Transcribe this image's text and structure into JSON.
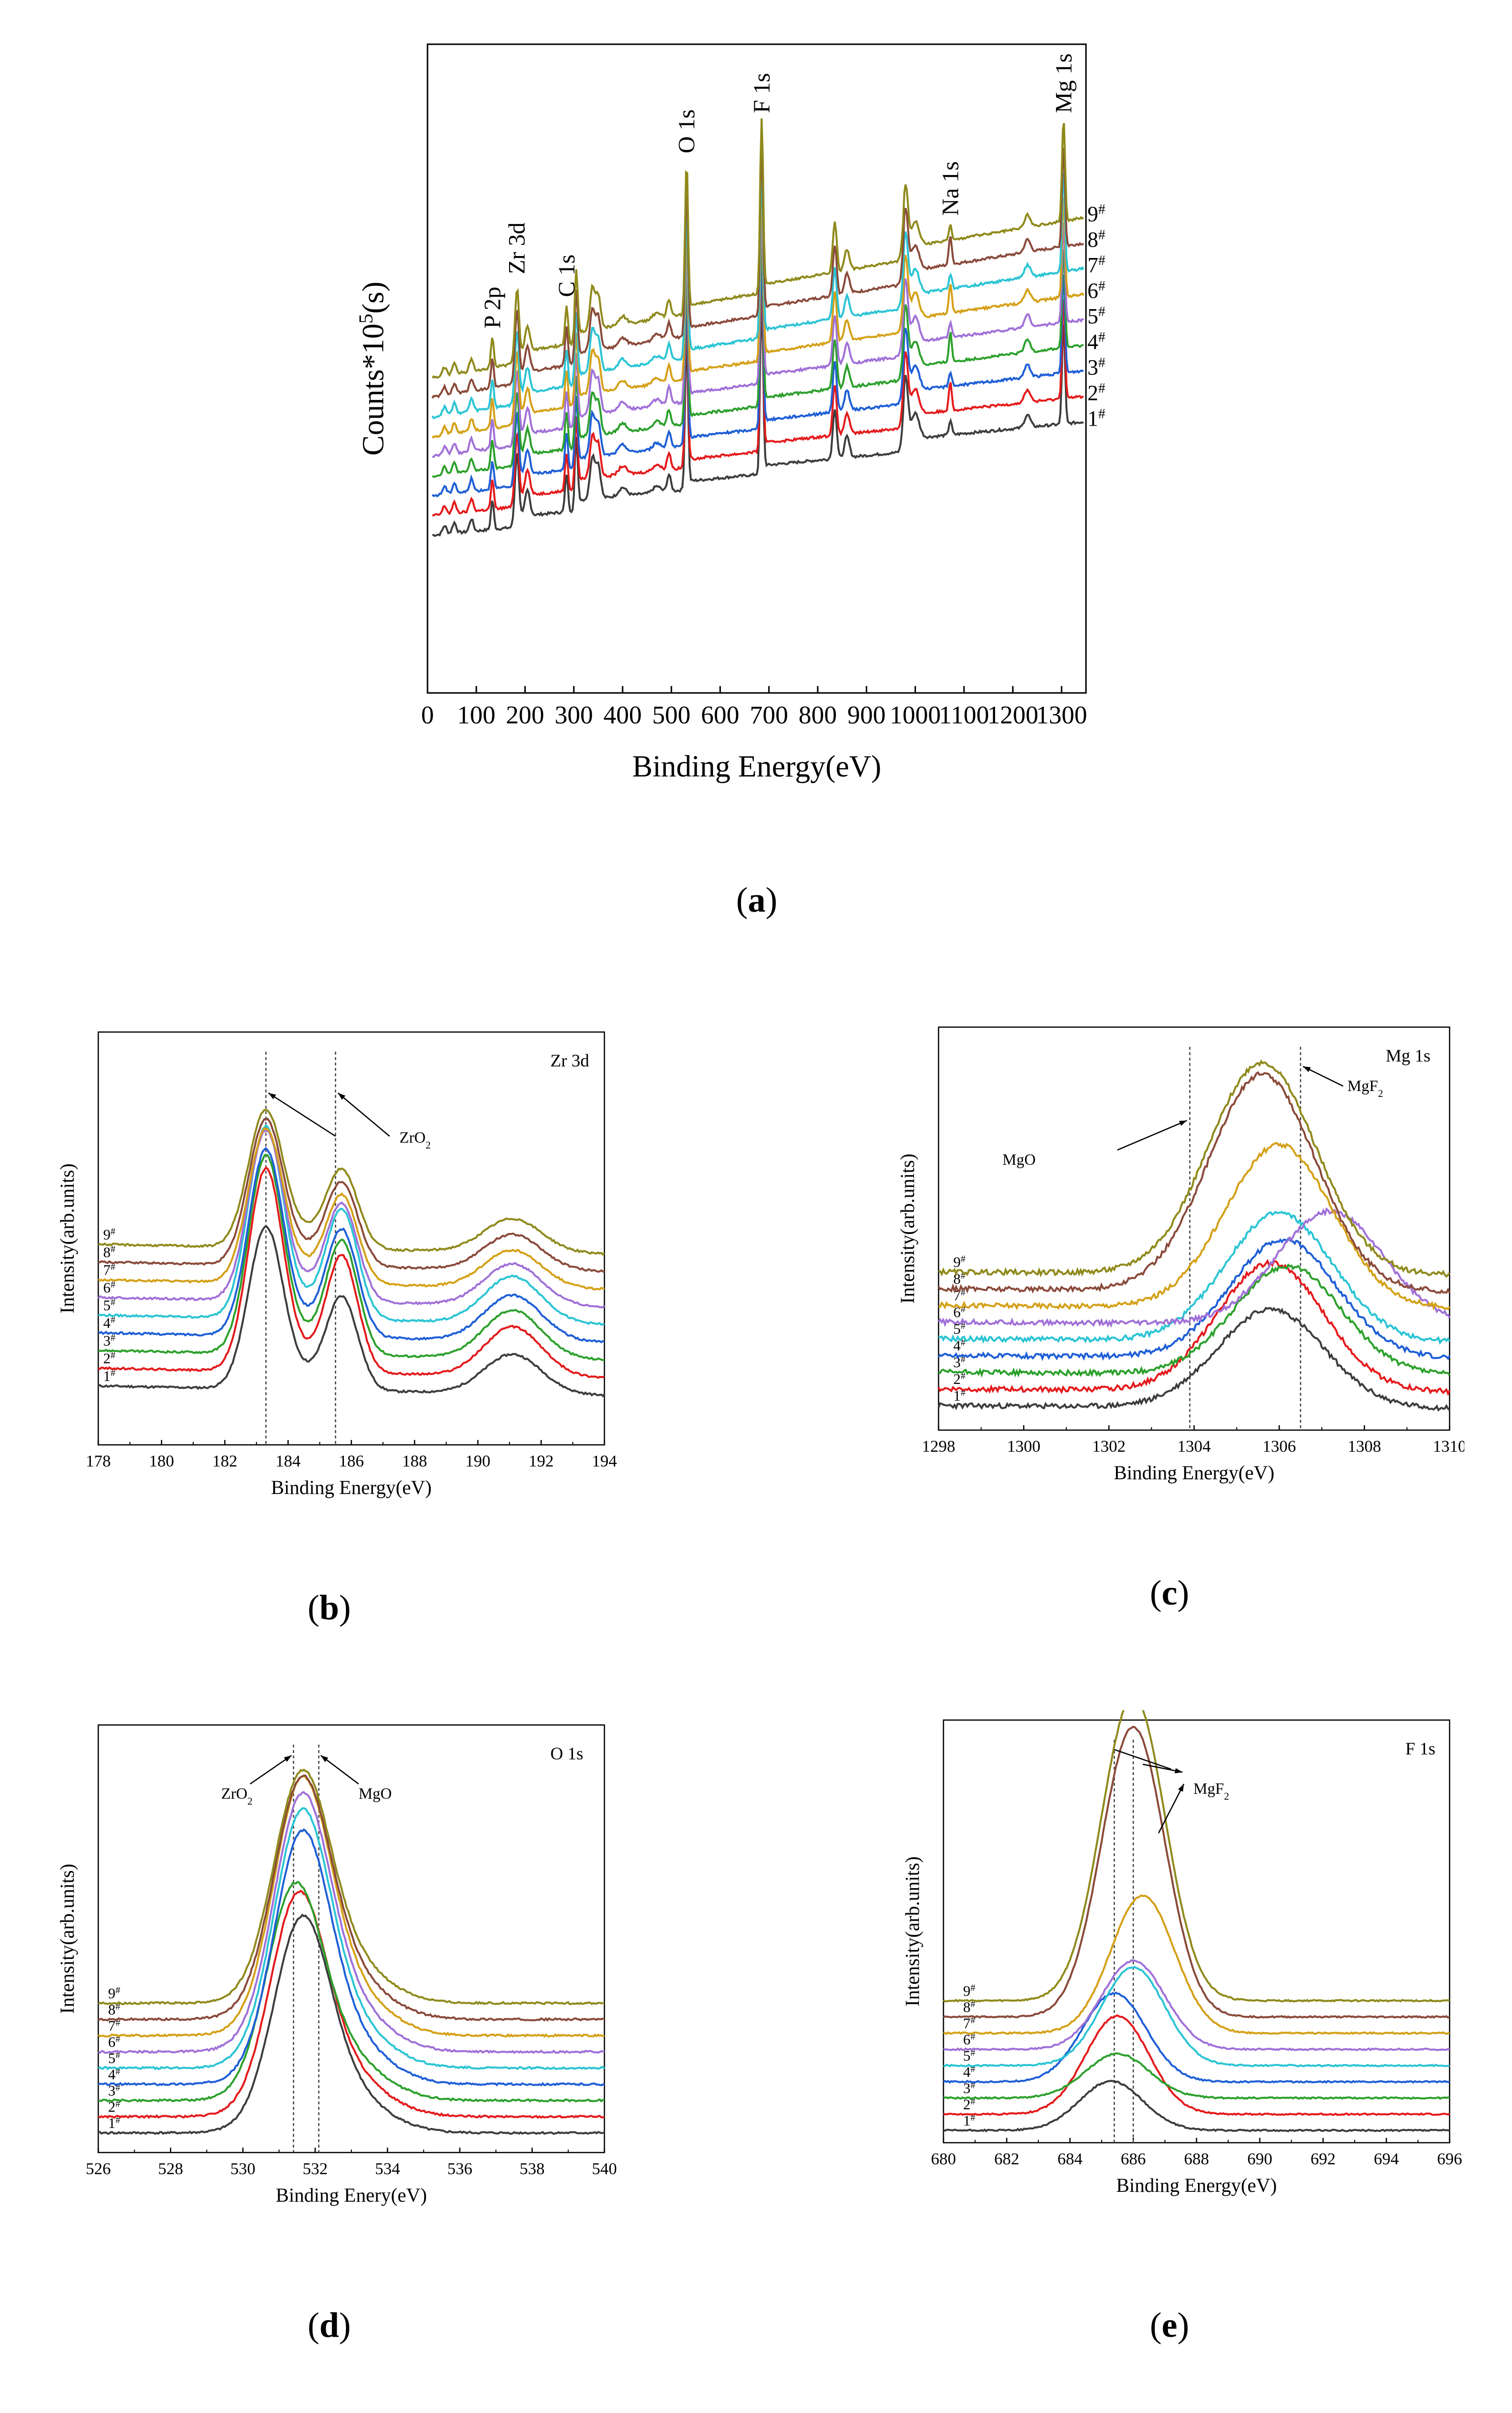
{
  "figure": {
    "captions": [
      "a",
      "b",
      "c",
      "d",
      "e"
    ]
  },
  "sample_labels": [
    "1",
    "2",
    "3",
    "4",
    "5",
    "6",
    "7",
    "8",
    "9"
  ],
  "sample_superscript": "#",
  "sample_colors": [
    "#3d3d3d",
    "#e41a1c",
    "#2ca02c",
    "#1f5fd6",
    "#2bc4d4",
    "#a070d8",
    "#d4a017",
    "#8a4a3a",
    "#8f8a1c"
  ],
  "chart_data": [
    {
      "id": "a",
      "type": "line",
      "xlabel": "Binding Energy(eV)",
      "ylabel_base": "Counts*10",
      "ylabel_sup": "5",
      "ylabel_tail": "(s)",
      "xlim": [
        0,
        1350
      ],
      "xticks": [
        0,
        100,
        200,
        300,
        400,
        500,
        600,
        700,
        800,
        900,
        1000,
        1100,
        1200,
        1300
      ],
      "peak_labels": [
        {
          "text": "P 2p",
          "x": 133
        },
        {
          "text": "Zr 3d",
          "x": 183
        },
        {
          "text": "C 1s",
          "x": 285
        },
        {
          "text": "O 1s",
          "x": 531
        },
        {
          "text": "F 1s",
          "x": 685
        },
        {
          "text": "Na 1s",
          "x": 1072
        },
        {
          "text": "Mg 1s",
          "x": 1304
        }
      ],
      "series_colors": [
        "#3d3d3d",
        "#e41a1c",
        "#1f5fd6",
        "#2ca02c",
        "#a070d8",
        "#d4a017",
        "#2bc4d4",
        "#8a4a3a",
        "#8f8a1c"
      ],
      "series_labels": [
        "1",
        "2",
        "3",
        "4",
        "5",
        "6",
        "7",
        "8",
        "9"
      ]
    },
    {
      "id": "b",
      "type": "line",
      "xlabel": "Binding Energy(eV)",
      "ylabel": "Intensity(arb.units)",
      "title": "Zr 3d",
      "annotation": "ZrO",
      "annotation_sub": "2",
      "xlim": [
        178,
        194
      ],
      "xticks": [
        178,
        180,
        182,
        184,
        186,
        188,
        190,
        192,
        194
      ],
      "ref_lines": [
        183.3,
        185.5
      ],
      "peaks": [
        183.3,
        185.7,
        191.1
      ]
    },
    {
      "id": "c",
      "type": "line",
      "xlabel": "Binding Energy(eV)",
      "ylabel": "Intensity(arb.units)",
      "title": "Mg 1s",
      "annotations": [
        {
          "text": "MgO",
          "sub": ""
        },
        {
          "text": "MgF",
          "sub": "2"
        }
      ],
      "xlim": [
        1298,
        1310
      ],
      "xticks": [
        1298,
        1300,
        1302,
        1304,
        1306,
        1308,
        1310
      ],
      "ref_lines": [
        1303.9,
        1306.5
      ],
      "peak_centers": [
        1305.8,
        1305.8,
        1306.2,
        1306.1,
        1306.0,
        1307.2,
        1306.0,
        1305.6,
        1305.6
      ]
    },
    {
      "id": "d",
      "type": "line",
      "xlabel": "Binding Enery(eV)",
      "ylabel": "Intensity(arb.units)",
      "title": "O 1s",
      "annotations": [
        {
          "text": "ZrO",
          "sub": "2"
        },
        {
          "text": "MgO",
          "sub": ""
        }
      ],
      "xlim": [
        526,
        540
      ],
      "xticks": [
        526,
        528,
        530,
        532,
        534,
        536,
        538,
        540
      ],
      "ref_lines": [
        531.4,
        532.1
      ],
      "peak_centers": [
        531.6,
        531.5,
        531.4,
        531.6,
        531.6,
        531.6,
        531.6,
        531.6,
        531.6
      ]
    },
    {
      "id": "e",
      "type": "line",
      "xlabel": "Binding Energy(eV)",
      "ylabel": "Intensity(arb.units)",
      "title": "F 1s",
      "annotation": "MgF",
      "annotation_sub": "2",
      "xlim": [
        680,
        696
      ],
      "xticks": [
        680,
        682,
        684,
        686,
        688,
        690,
        692,
        694,
        696
      ],
      "ref_lines": [
        685.4,
        686.0
      ],
      "peak_centers": [
        685.3,
        685.5,
        685.5,
        685.4,
        686.0,
        686.0,
        686.3,
        686.0,
        686.0
      ]
    }
  ]
}
